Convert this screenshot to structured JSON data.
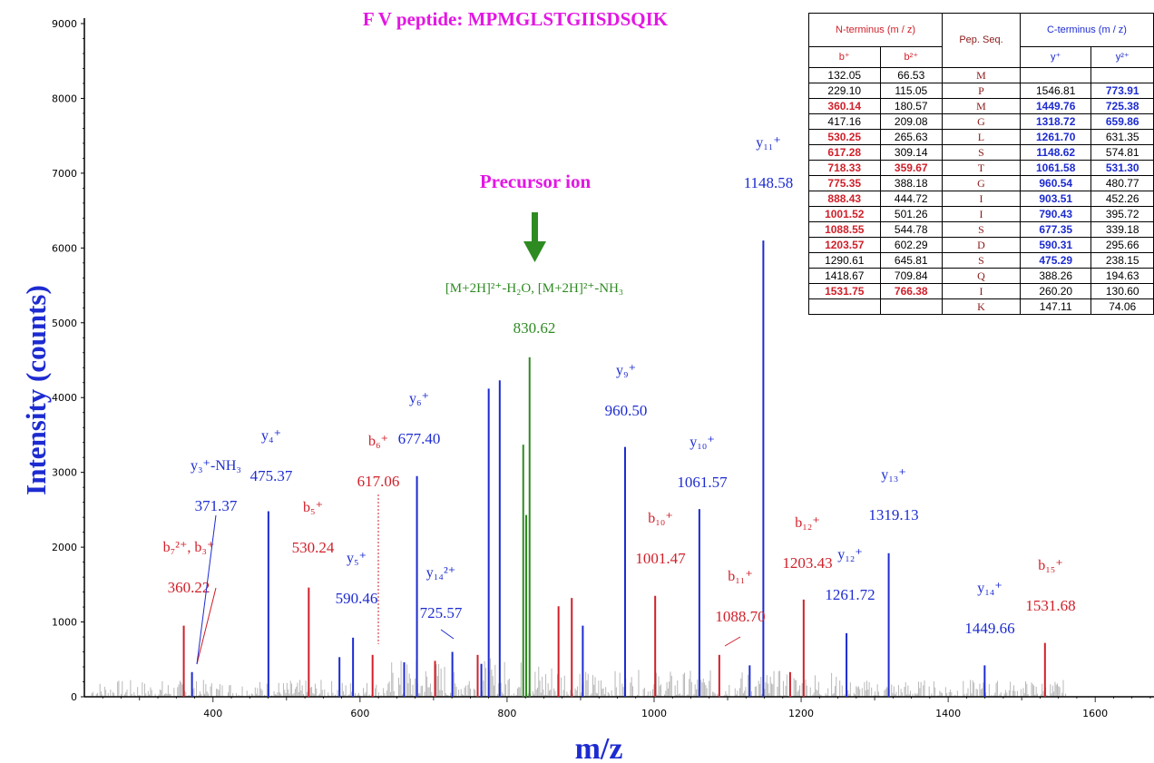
{
  "chart_data": {
    "type": "bar",
    "title": "F V peptide: MPMGLSTGIISDSQIK",
    "xlabel": "m/z",
    "ylabel": "Intensity (counts)",
    "xlim": [
      225,
      1680
    ],
    "ylim": [
      0,
      9000
    ],
    "xticks": [
      "400",
      "600",
      "800",
      "1000",
      "1200",
      "1400",
      "1600"
    ],
    "xtick_values": [
      400,
      600,
      800,
      1000,
      1200,
      1400,
      1600
    ],
    "yticks": [
      "0",
      "1000",
      "2000",
      "3000",
      "4000",
      "5000",
      "6000",
      "7000",
      "8000",
      "9000"
    ],
    "ytick_values": [
      0,
      1000,
      2000,
      3000,
      4000,
      5000,
      6000,
      7000,
      8000,
      9000
    ],
    "precursor_label": "Precursor ion",
    "colors": {
      "b": "#d0202a",
      "y": "#1d2bd1",
      "precursor": "#2e8b22",
      "noise": "#b8b8b8",
      "title": "#e316e3",
      "axis_label": "#1d2bd1"
    },
    "series": [
      {
        "name": "b",
        "peaks": [
          {
            "mz": 360.22,
            "intensity": 950
          },
          {
            "mz": 530.24,
            "intensity": 1460
          },
          {
            "mz": 617.06,
            "intensity": 560
          },
          {
            "mz": 702,
            "intensity": 480
          },
          {
            "mz": 760,
            "intensity": 560
          },
          {
            "mz": 870,
            "intensity": 1210
          },
          {
            "mz": 888,
            "intensity": 1320
          },
          {
            "mz": 1001.47,
            "intensity": 1350
          },
          {
            "mz": 1088.7,
            "intensity": 560
          },
          {
            "mz": 1185,
            "intensity": 330
          },
          {
            "mz": 1203.43,
            "intensity": 1300
          },
          {
            "mz": 1531.68,
            "intensity": 720
          }
        ]
      },
      {
        "name": "y",
        "peaks": [
          {
            "mz": 371.37,
            "intensity": 330
          },
          {
            "mz": 475.37,
            "intensity": 2480
          },
          {
            "mz": 572,
            "intensity": 530
          },
          {
            "mz": 590.46,
            "intensity": 790
          },
          {
            "mz": 660,
            "intensity": 460
          },
          {
            "mz": 677.4,
            "intensity": 2950
          },
          {
            "mz": 725.57,
            "intensity": 600
          },
          {
            "mz": 765,
            "intensity": 440
          },
          {
            "mz": 775,
            "intensity": 4120
          },
          {
            "mz": 790,
            "intensity": 4230
          },
          {
            "mz": 903,
            "intensity": 950
          },
          {
            "mz": 960.5,
            "intensity": 3340
          },
          {
            "mz": 1061.57,
            "intensity": 2510
          },
          {
            "mz": 1130,
            "intensity": 420
          },
          {
            "mz": 1148.58,
            "intensity": 6100
          },
          {
            "mz": 1261.72,
            "intensity": 850
          },
          {
            "mz": 1319.13,
            "intensity": 1920
          },
          {
            "mz": 1449.66,
            "intensity": 420
          }
        ]
      },
      {
        "name": "precursor",
        "peaks": [
          {
            "mz": 822,
            "intensity": 3370
          },
          {
            "mz": 826,
            "intensity": 2430
          },
          {
            "mz": 830.62,
            "intensity": 4540
          }
        ]
      }
    ],
    "annotations": [
      {
        "text": "b₇²⁺, b₃⁺",
        "value": "360.22",
        "color": "#d0202a",
        "mz": 360.22
      },
      {
        "text": "y₃⁺-NH₃",
        "value": "371.37",
        "color": "#1d2bd1",
        "mz": 371.37
      },
      {
        "text": "y₄⁺",
        "value": "475.37",
        "color": "#1d2bd1",
        "mz": 475.37
      },
      {
        "text": "b₅⁺",
        "value": "530.24",
        "color": "#d0202a",
        "mz": 530.24
      },
      {
        "text": "y₅⁺",
        "value": "590.46",
        "color": "#1d2bd1",
        "mz": 590.46
      },
      {
        "text": "b₆⁺",
        "value": "617.06",
        "color": "#d0202a",
        "mz": 617.06
      },
      {
        "text": "y₆⁺",
        "value": "677.40",
        "color": "#1d2bd1",
        "mz": 677.4
      },
      {
        "text": "y₁₄²⁺",
        "value": "725.57",
        "color": "#1d2bd1",
        "mz": 725.57
      },
      {
        "text": "[M+2H]²⁺-H₂O, [M+2H]²⁺-NH₃",
        "value": "830.62",
        "color": "#2e8b22",
        "mz": 830.62
      },
      {
        "text": "y₉⁺",
        "value": "960.50",
        "color": "#1d2bd1",
        "mz": 960.5
      },
      {
        "text": "b₁₀⁺",
        "value": "1001.47",
        "color": "#d0202a",
        "mz": 1001.47
      },
      {
        "text": "y₁₀⁺",
        "value": "1061.57",
        "color": "#1d2bd1",
        "mz": 1061.57
      },
      {
        "text": "b₁₁⁺",
        "value": "1088.70",
        "color": "#d0202a",
        "mz": 1088.7
      },
      {
        "text": "y₁₁⁺",
        "value": "1148.58",
        "color": "#1d2bd1",
        "mz": 1148.58
      },
      {
        "text": "b₁₂⁺",
        "value": "1203.43",
        "color": "#d0202a",
        "mz": 1203.43
      },
      {
        "text": "y₁₂⁺",
        "value": "1261.72",
        "color": "#1d2bd1",
        "mz": 1261.72
      },
      {
        "text": "y₁₃⁺",
        "value": "1319.13",
        "color": "#1d2bd1",
        "mz": 1319.13
      },
      {
        "text": "y₁₄⁺",
        "value": "1449.66",
        "color": "#1d2bd1",
        "mz": 1449.66
      },
      {
        "text": "b₁₅⁺",
        "value": "1531.68",
        "color": "#d0202a",
        "mz": 1531.68
      }
    ]
  },
  "table": {
    "n_header": "N-terminus (m / z)",
    "seq_header": "Pep. Seq.",
    "c_header": "C-terminus (m / z)",
    "b1_header": "b⁺",
    "b2_header": "b²⁺",
    "y1_header": "y⁺",
    "y2_header": "y²⁺",
    "rows": [
      {
        "b1": "132.05",
        "b1c": "black",
        "b2": "66.53",
        "b2c": "black",
        "seq": "M",
        "y1": "",
        "y1c": "black",
        "y2": "",
        "y2c": "black"
      },
      {
        "b1": "229.10",
        "b1c": "black",
        "b2": "115.05",
        "b2c": "black",
        "seq": "P",
        "y1": "1546.81",
        "y1c": "black",
        "y2": "773.91",
        "y2c": "blue"
      },
      {
        "b1": "360.14",
        "b1c": "red",
        "b2": "180.57",
        "b2c": "black",
        "seq": "M",
        "y1": "1449.76",
        "y1c": "blue",
        "y2": "725.38",
        "y2c": "blue"
      },
      {
        "b1": "417.16",
        "b1c": "black",
        "b2": "209.08",
        "b2c": "black",
        "seq": "G",
        "y1": "1318.72",
        "y1c": "blue",
        "y2": "659.86",
        "y2c": "blue"
      },
      {
        "b1": "530.25",
        "b1c": "red",
        "b2": "265.63",
        "b2c": "black",
        "seq": "L",
        "y1": "1261.70",
        "y1c": "blue",
        "y2": "631.35",
        "y2c": "black"
      },
      {
        "b1": "617.28",
        "b1c": "red",
        "b2": "309.14",
        "b2c": "black",
        "seq": "S",
        "y1": "1148.62",
        "y1c": "blue",
        "y2": "574.81",
        "y2c": "black"
      },
      {
        "b1": "718.33",
        "b1c": "red",
        "b2": "359.67",
        "b2c": "red",
        "seq": "T",
        "y1": "1061.58",
        "y1c": "blue",
        "y2": "531.30",
        "y2c": "blue"
      },
      {
        "b1": "775.35",
        "b1c": "red",
        "b2": "388.18",
        "b2c": "black",
        "seq": "G",
        "y1": "960.54",
        "y1c": "blue",
        "y2": "480.77",
        "y2c": "black"
      },
      {
        "b1": "888.43",
        "b1c": "red",
        "b2": "444.72",
        "b2c": "black",
        "seq": "I",
        "y1": "903.51",
        "y1c": "blue",
        "y2": "452.26",
        "y2c": "black"
      },
      {
        "b1": "1001.52",
        "b1c": "red",
        "b2": "501.26",
        "b2c": "black",
        "seq": "I",
        "y1": "790.43",
        "y1c": "blue",
        "y2": "395.72",
        "y2c": "black"
      },
      {
        "b1": "1088.55",
        "b1c": "red",
        "b2": "544.78",
        "b2c": "black",
        "seq": "S",
        "y1": "677.35",
        "y1c": "blue",
        "y2": "339.18",
        "y2c": "black"
      },
      {
        "b1": "1203.57",
        "b1c": "red",
        "b2": "602.29",
        "b2c": "black",
        "seq": "D",
        "y1": "590.31",
        "y1c": "blue",
        "y2": "295.66",
        "y2c": "black"
      },
      {
        "b1": "1290.61",
        "b1c": "black",
        "b2": "645.81",
        "b2c": "black",
        "seq": "S",
        "y1": "475.29",
        "y1c": "blue",
        "y2": "238.15",
        "y2c": "black"
      },
      {
        "b1": "1418.67",
        "b1c": "black",
        "b2": "709.84",
        "b2c": "black",
        "seq": "Q",
        "y1": "388.26",
        "y1c": "black",
        "y2": "194.63",
        "y2c": "black"
      },
      {
        "b1": "1531.75",
        "b1c": "red",
        "b2": "766.38",
        "b2c": "red",
        "seq": "I",
        "y1": "260.20",
        "y1c": "black",
        "y2": "130.60",
        "y2c": "black"
      },
      {
        "b1": "",
        "b1c": "black",
        "b2": "",
        "b2c": "black",
        "seq": "K",
        "y1": "147.11",
        "y1c": "black",
        "y2": "74.06",
        "y2c": "black"
      }
    ]
  }
}
